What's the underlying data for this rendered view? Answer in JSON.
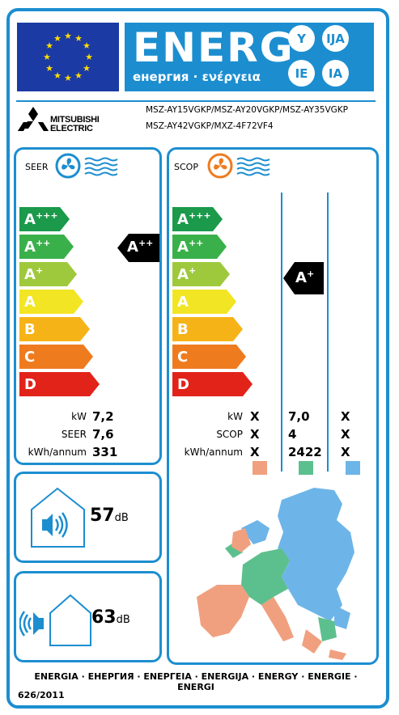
{
  "header": {
    "energ": "ENERG",
    "subtitle": "енергия · ενέργεια",
    "lang_codes": [
      "Y",
      "IJA",
      "IE",
      "IA"
    ]
  },
  "brand": {
    "line1": "MITSUBISHI",
    "line2": "ELECTRIC"
  },
  "models": {
    "line1": "MSZ-AY15VGKP/MSZ-AY20VGKP/MSZ-AY35VGKP",
    "line2": "MSZ-AY42VGKP/MXZ-4F72VF4"
  },
  "classes": [
    {
      "letter": "A",
      "sup": "+++",
      "color": "#1a9a4a"
    },
    {
      "letter": "A",
      "sup": "++",
      "color": "#3ab04a"
    },
    {
      "letter": "A",
      "sup": "+",
      "color": "#9fc93c"
    },
    {
      "letter": "A",
      "sup": "",
      "color": "#f2e524"
    },
    {
      "letter": "B",
      "sup": "",
      "color": "#f6b318"
    },
    {
      "letter": "C",
      "sup": "",
      "color": "#ef7b1f"
    },
    {
      "letter": "D",
      "sup": "",
      "color": "#e2231a"
    }
  ],
  "seer": {
    "title": "SEER",
    "rating": {
      "letter": "A",
      "sup": "++"
    },
    "rows": [
      {
        "label": "kW",
        "value": "7,2"
      },
      {
        "label": "SEER",
        "value": "7,6"
      },
      {
        "label": "kWh/annum",
        "value": "331"
      }
    ]
  },
  "scop": {
    "title": "SCOP",
    "rating": {
      "letter": "A",
      "sup": "+"
    },
    "rows": [
      {
        "label": "kW",
        "values": [
          "X",
          "7,0",
          "X"
        ]
      },
      {
        "label": "SCOP",
        "values": [
          "X",
          "4",
          "X"
        ]
      },
      {
        "label": "kWh/annum",
        "values": [
          "X",
          "2422",
          "X"
        ]
      }
    ],
    "zone_colors": [
      "#f0a07f",
      "#5cc08e",
      "#6db5e8"
    ]
  },
  "noise": {
    "indoor": {
      "value": "57",
      "unit": "dB"
    },
    "outdoor": {
      "value": "63",
      "unit": "dB"
    }
  },
  "footer": {
    "energy_words": "ENERGIA · ЕНЕРГИЯ · ΕΝΕΡΓΕΙΑ · ENERGIJA · ENERGY · ENERGIE · ENERGI",
    "regulation": "626/2011"
  },
  "icons": [
    "eu-flag-icon",
    "fan-icon-blue",
    "fan-icon-orange",
    "speaker-icon",
    "house-icon",
    "europe-map-icon"
  ]
}
